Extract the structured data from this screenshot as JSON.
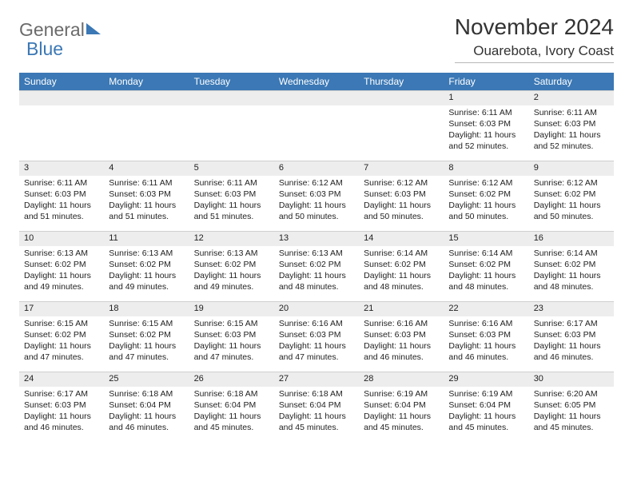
{
  "brand": {
    "part1": "General",
    "part2": "Blue"
  },
  "title": "November 2024",
  "location": "Ouarebota, Ivory Coast",
  "colors": {
    "header_bg": "#3b78b5",
    "header_fg": "#ffffff",
    "daynum_bg": "#ededed",
    "rule": "#cfcfcf",
    "text": "#222222",
    "page_bg": "#ffffff"
  },
  "font": {
    "family": "Arial",
    "title_size": 28,
    "location_size": 17,
    "th_size": 12,
    "cell_size": 10.5
  },
  "weekdays": [
    "Sunday",
    "Monday",
    "Tuesday",
    "Wednesday",
    "Thursday",
    "Friday",
    "Saturday"
  ],
  "weeks": [
    [
      null,
      null,
      null,
      null,
      null,
      {
        "n": "1",
        "sr": "6:11 AM",
        "ss": "6:03 PM",
        "dl": "11 hours and 52 minutes."
      },
      {
        "n": "2",
        "sr": "6:11 AM",
        "ss": "6:03 PM",
        "dl": "11 hours and 52 minutes."
      }
    ],
    [
      {
        "n": "3",
        "sr": "6:11 AM",
        "ss": "6:03 PM",
        "dl": "11 hours and 51 minutes."
      },
      {
        "n": "4",
        "sr": "6:11 AM",
        "ss": "6:03 PM",
        "dl": "11 hours and 51 minutes."
      },
      {
        "n": "5",
        "sr": "6:11 AM",
        "ss": "6:03 PM",
        "dl": "11 hours and 51 minutes."
      },
      {
        "n": "6",
        "sr": "6:12 AM",
        "ss": "6:03 PM",
        "dl": "11 hours and 50 minutes."
      },
      {
        "n": "7",
        "sr": "6:12 AM",
        "ss": "6:03 PM",
        "dl": "11 hours and 50 minutes."
      },
      {
        "n": "8",
        "sr": "6:12 AM",
        "ss": "6:02 PM",
        "dl": "11 hours and 50 minutes."
      },
      {
        "n": "9",
        "sr": "6:12 AM",
        "ss": "6:02 PM",
        "dl": "11 hours and 50 minutes."
      }
    ],
    [
      {
        "n": "10",
        "sr": "6:13 AM",
        "ss": "6:02 PM",
        "dl": "11 hours and 49 minutes."
      },
      {
        "n": "11",
        "sr": "6:13 AM",
        "ss": "6:02 PM",
        "dl": "11 hours and 49 minutes."
      },
      {
        "n": "12",
        "sr": "6:13 AM",
        "ss": "6:02 PM",
        "dl": "11 hours and 49 minutes."
      },
      {
        "n": "13",
        "sr": "6:13 AM",
        "ss": "6:02 PM",
        "dl": "11 hours and 48 minutes."
      },
      {
        "n": "14",
        "sr": "6:14 AM",
        "ss": "6:02 PM",
        "dl": "11 hours and 48 minutes."
      },
      {
        "n": "15",
        "sr": "6:14 AM",
        "ss": "6:02 PM",
        "dl": "11 hours and 48 minutes."
      },
      {
        "n": "16",
        "sr": "6:14 AM",
        "ss": "6:02 PM",
        "dl": "11 hours and 48 minutes."
      }
    ],
    [
      {
        "n": "17",
        "sr": "6:15 AM",
        "ss": "6:02 PM",
        "dl": "11 hours and 47 minutes."
      },
      {
        "n": "18",
        "sr": "6:15 AM",
        "ss": "6:02 PM",
        "dl": "11 hours and 47 minutes."
      },
      {
        "n": "19",
        "sr": "6:15 AM",
        "ss": "6:03 PM",
        "dl": "11 hours and 47 minutes."
      },
      {
        "n": "20",
        "sr": "6:16 AM",
        "ss": "6:03 PM",
        "dl": "11 hours and 47 minutes."
      },
      {
        "n": "21",
        "sr": "6:16 AM",
        "ss": "6:03 PM",
        "dl": "11 hours and 46 minutes."
      },
      {
        "n": "22",
        "sr": "6:16 AM",
        "ss": "6:03 PM",
        "dl": "11 hours and 46 minutes."
      },
      {
        "n": "23",
        "sr": "6:17 AM",
        "ss": "6:03 PM",
        "dl": "11 hours and 46 minutes."
      }
    ],
    [
      {
        "n": "24",
        "sr": "6:17 AM",
        "ss": "6:03 PM",
        "dl": "11 hours and 46 minutes."
      },
      {
        "n": "25",
        "sr": "6:18 AM",
        "ss": "6:04 PM",
        "dl": "11 hours and 46 minutes."
      },
      {
        "n": "26",
        "sr": "6:18 AM",
        "ss": "6:04 PM",
        "dl": "11 hours and 45 minutes."
      },
      {
        "n": "27",
        "sr": "6:18 AM",
        "ss": "6:04 PM",
        "dl": "11 hours and 45 minutes."
      },
      {
        "n": "28",
        "sr": "6:19 AM",
        "ss": "6:04 PM",
        "dl": "11 hours and 45 minutes."
      },
      {
        "n": "29",
        "sr": "6:19 AM",
        "ss": "6:04 PM",
        "dl": "11 hours and 45 minutes."
      },
      {
        "n": "30",
        "sr": "6:20 AM",
        "ss": "6:05 PM",
        "dl": "11 hours and 45 minutes."
      }
    ]
  ],
  "labels": {
    "sunrise": "Sunrise:",
    "sunset": "Sunset:",
    "daylight": "Daylight:"
  }
}
